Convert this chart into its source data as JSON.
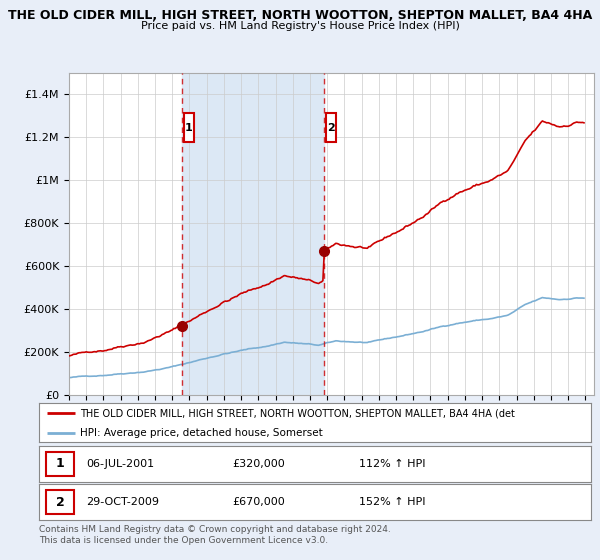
{
  "title": "THE OLD CIDER MILL, HIGH STREET, NORTH WOOTTON, SHEPTON MALLET, BA4 4HA",
  "subtitle": "Price paid vs. HM Land Registry's House Price Index (HPI)",
  "legend_line1": "THE OLD CIDER MILL, HIGH STREET, NORTH WOOTTON, SHEPTON MALLET, BA4 4HA (det",
  "legend_line2": "HPI: Average price, detached house, Somerset",
  "purchase1_date": "06-JUL-2001",
  "purchase1_price": 320000,
  "purchase1_label": "1",
  "purchase1_pct": "112% ↑ HPI",
  "purchase2_date": "29-OCT-2009",
  "purchase2_price": 670000,
  "purchase2_label": "2",
  "purchase2_pct": "152% ↑ HPI",
  "footer": "Contains HM Land Registry data © Crown copyright and database right 2024.\nThis data is licensed under the Open Government Licence v3.0.",
  "background_color": "#e8eef8",
  "plot_bg_color": "#ffffff",
  "red_line_color": "#cc0000",
  "blue_line_color": "#7bafd4",
  "dashed_line_color": "#cc0000",
  "shade_color": "#dce8f5",
  "ylim_max": 1500000,
  "x_start_year": 1995,
  "x_end_year": 2025
}
